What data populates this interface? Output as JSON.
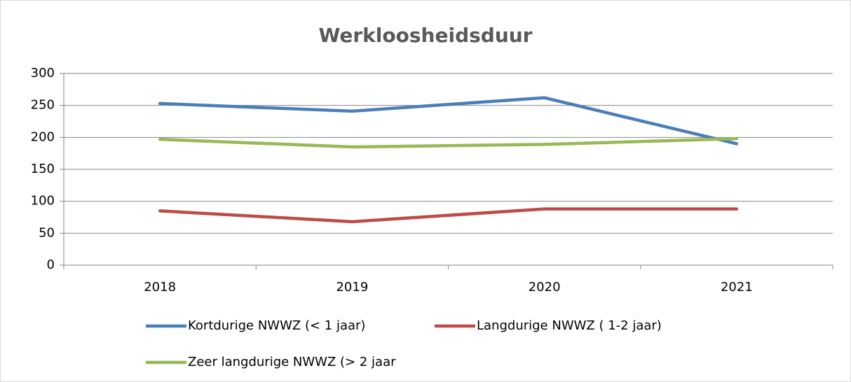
{
  "chart_data": {
    "type": "line",
    "title": "Werkloosheidsduur",
    "categories": [
      "2018",
      "2019",
      "2020",
      "2021"
    ],
    "series": [
      {
        "name": "Kortdurige NWWZ (< 1 jaar)",
        "color": "#4a7ebb",
        "values": [
          253,
          241,
          262,
          190
        ]
      },
      {
        "name": "Langdurige NWWZ ( 1-2 jaar)",
        "color": "#be4b48",
        "values": [
          85,
          68,
          88,
          88
        ]
      },
      {
        "name": "Zeer langdurige NWWZ (> 2 jaar",
        "color": "#98b954",
        "values": [
          197,
          185,
          189,
          198
        ]
      }
    ],
    "ylim": [
      0,
      300
    ],
    "yticks": [
      0,
      50,
      100,
      150,
      200,
      250,
      300
    ],
    "grid": true,
    "legend": "bottom"
  }
}
